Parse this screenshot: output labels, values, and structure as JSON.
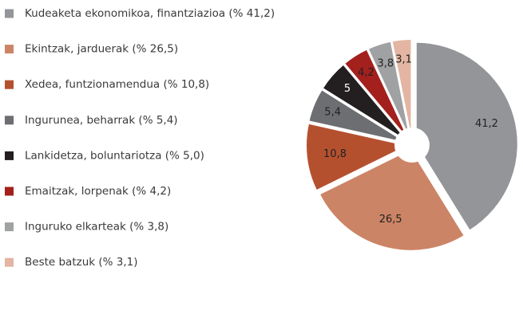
{
  "chart_data": {
    "type": "pie",
    "categories": [
      "Kudeaketa ekonomikoa, finantziazioa (% 41,2)",
      "Ekintzak, jarduerak (% 26,5)",
      "Xedea, funtzionamendua (% 10,8)",
      "Ingurunea, beharrak (% 5,4)",
      "Lankidetza, boluntariotza (% 5,0)",
      "Emaitzak, lorpenak (% 4,2)",
      "Inguruko elkarteak (% 3,8)",
      "Beste batzuk (% 3,1)"
    ],
    "values": [
      41.2,
      26.5,
      10.8,
      5.4,
      5.0,
      4.2,
      3.8,
      3.1
    ],
    "value_labels": [
      "41,2",
      "26,5",
      "10,8",
      "5,4",
      "5",
      "4,2",
      "3,8",
      "3,1"
    ],
    "colors": [
      "#939598",
      "#cc8466",
      "#b5502f",
      "#6d6e71",
      "#231f20",
      "#a3201d",
      "#a0a1a3",
      "#e3b5a2"
    ],
    "legend": "left"
  }
}
